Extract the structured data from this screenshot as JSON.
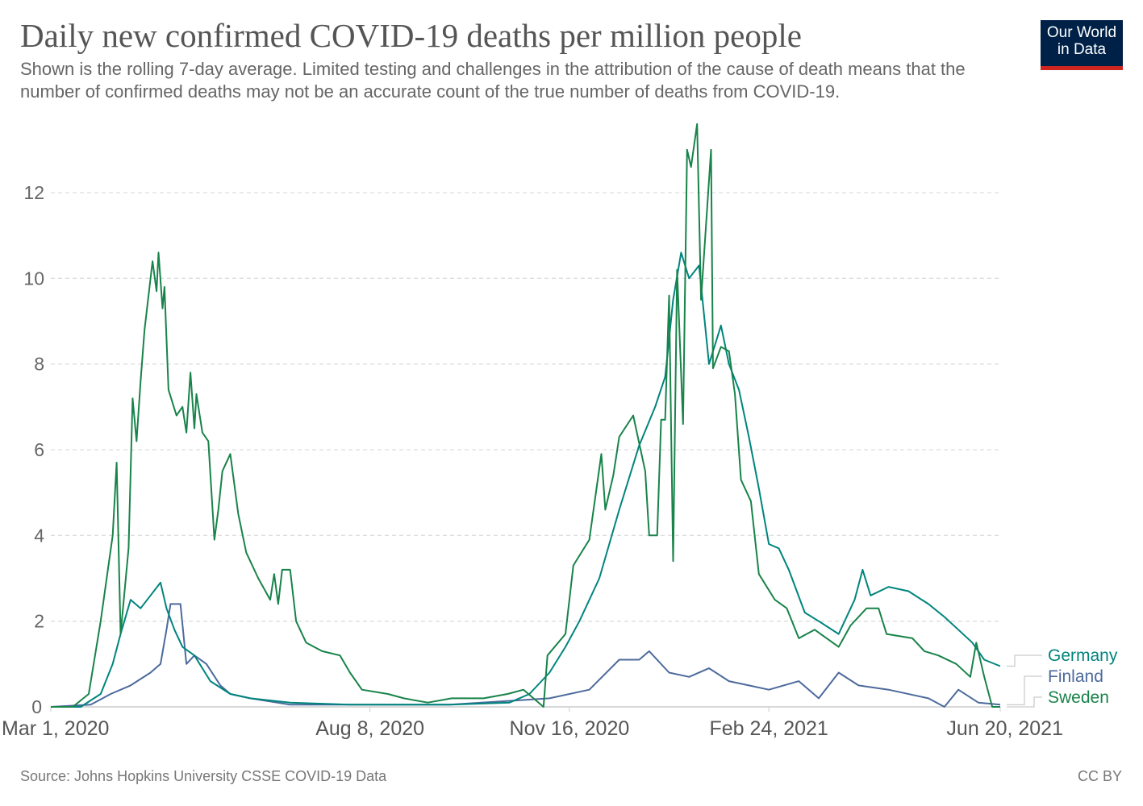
{
  "header": {
    "title": "Daily new confirmed COVID-19 deaths per million people",
    "subtitle": "Shown is the rolling 7-day average. Limited testing and challenges in the attribution of the cause of death means that the number of confirmed deaths may not be an accurate count of the true number of deaths from COVID-19.",
    "logo_line1": "Our World",
    "logo_line2": "in Data"
  },
  "footer": {
    "source": "Source: Johns Hopkins University CSSE COVID-19 Data",
    "license": "CC BY"
  },
  "chart_data": {
    "type": "line",
    "title": "Daily new confirmed COVID-19 deaths per million people",
    "xlim": [
      "2020-03-01",
      "2021-06-20"
    ],
    "ylim": [
      0,
      13.6
    ],
    "y_ticks": [
      0,
      2,
      4,
      6,
      8,
      10,
      12
    ],
    "x_ticks": [
      {
        "date": "2020-03-01",
        "label": "Mar 1, 2020"
      },
      {
        "date": "2020-08-08",
        "label": "Aug 8, 2020"
      },
      {
        "date": "2020-11-16",
        "label": "Nov 16, 2020"
      },
      {
        "date": "2021-02-24",
        "label": "Feb 24, 2021"
      },
      {
        "date": "2021-06-20",
        "label": "Jun 20, 2021"
      }
    ],
    "grid": "horizontal dashed",
    "legend": "right (end-of-line labels)",
    "series": [
      {
        "name": "Germany",
        "color": "#00847e",
        "points": [
          [
            "2020-03-01",
            0
          ],
          [
            "2020-03-16",
            0
          ],
          [
            "2020-03-26",
            0.3
          ],
          [
            "2020-04-01",
            1.0
          ],
          [
            "2020-04-05",
            1.7
          ],
          [
            "2020-04-10",
            2.5
          ],
          [
            "2020-04-15",
            2.3
          ],
          [
            "2020-04-20",
            2.6
          ],
          [
            "2020-04-25",
            2.9
          ],
          [
            "2020-04-28",
            2.3
          ],
          [
            "2020-05-02",
            1.8
          ],
          [
            "2020-05-06",
            1.4
          ],
          [
            "2020-05-12",
            1.2
          ],
          [
            "2020-05-20",
            0.6
          ],
          [
            "2020-05-30",
            0.3
          ],
          [
            "2020-06-09",
            0.2
          ],
          [
            "2020-06-29",
            0.1
          ],
          [
            "2020-07-29",
            0.05
          ],
          [
            "2020-09-17",
            0.05
          ],
          [
            "2020-10-17",
            0.1
          ],
          [
            "2020-10-27",
            0.3
          ],
          [
            "2020-11-06",
            0.8
          ],
          [
            "2020-11-14",
            1.4
          ],
          [
            "2020-11-21",
            2.0
          ],
          [
            "2020-12-01",
            3.0
          ],
          [
            "2020-12-11",
            4.6
          ],
          [
            "2020-12-21",
            6.1
          ],
          [
            "2020-12-29",
            7.0
          ],
          [
            "2021-01-03",
            7.7
          ],
          [
            "2021-01-07",
            9.5
          ],
          [
            "2021-01-11",
            10.6
          ],
          [
            "2021-01-15",
            10.0
          ],
          [
            "2021-01-20",
            10.3
          ],
          [
            "2021-01-25",
            8.0
          ],
          [
            "2021-01-31",
            8.9
          ],
          [
            "2021-02-04",
            8.0
          ],
          [
            "2021-02-09",
            7.4
          ],
          [
            "2021-02-14",
            6.3
          ],
          [
            "2021-02-19",
            5.1
          ],
          [
            "2021-02-24",
            3.8
          ],
          [
            "2021-03-01",
            3.7
          ],
          [
            "2021-03-06",
            3.2
          ],
          [
            "2021-03-14",
            2.2
          ],
          [
            "2021-03-21",
            2.0
          ],
          [
            "2021-03-31",
            1.7
          ],
          [
            "2021-04-08",
            2.5
          ],
          [
            "2021-04-12",
            3.2
          ],
          [
            "2021-04-16",
            2.6
          ],
          [
            "2021-04-25",
            2.8
          ],
          [
            "2021-05-05",
            2.7
          ],
          [
            "2021-05-15",
            2.4
          ],
          [
            "2021-05-23",
            2.1
          ],
          [
            "2021-05-30",
            1.8
          ],
          [
            "2021-06-06",
            1.5
          ],
          [
            "2021-06-12",
            1.1
          ],
          [
            "2021-06-20",
            0.95
          ]
        ]
      },
      {
        "name": "Finland",
        "color": "#4c6a9c",
        "points": [
          [
            "2020-03-01",
            0
          ],
          [
            "2020-03-21",
            0.05
          ],
          [
            "2020-03-31",
            0.3
          ],
          [
            "2020-04-10",
            0.5
          ],
          [
            "2020-04-20",
            0.8
          ],
          [
            "2020-04-25",
            1.0
          ],
          [
            "2020-04-28",
            1.8
          ],
          [
            "2020-04-30",
            2.4
          ],
          [
            "2020-05-05",
            2.4
          ],
          [
            "2020-05-08",
            1.0
          ],
          [
            "2020-05-12",
            1.2
          ],
          [
            "2020-05-18",
            1.0
          ],
          [
            "2020-05-25",
            0.5
          ],
          [
            "2020-05-30",
            0.3
          ],
          [
            "2020-06-09",
            0.2
          ],
          [
            "2020-06-29",
            0.05
          ],
          [
            "2020-09-17",
            0.05
          ],
          [
            "2020-11-06",
            0.2
          ],
          [
            "2020-11-26",
            0.4
          ],
          [
            "2020-12-11",
            1.1
          ],
          [
            "2020-12-21",
            1.1
          ],
          [
            "2020-12-26",
            1.3
          ],
          [
            "2021-01-05",
            0.8
          ],
          [
            "2021-01-15",
            0.7
          ],
          [
            "2021-01-25",
            0.9
          ],
          [
            "2021-02-04",
            0.6
          ],
          [
            "2021-02-14",
            0.5
          ],
          [
            "2021-02-24",
            0.4
          ],
          [
            "2021-03-11",
            0.6
          ],
          [
            "2021-03-21",
            0.2
          ],
          [
            "2021-03-31",
            0.8
          ],
          [
            "2021-04-10",
            0.5
          ],
          [
            "2021-04-25",
            0.4
          ],
          [
            "2021-05-15",
            0.2
          ],
          [
            "2021-05-23",
            0.0
          ],
          [
            "2021-05-30",
            0.4
          ],
          [
            "2021-06-09",
            0.1
          ],
          [
            "2021-06-20",
            0.05
          ]
        ]
      },
      {
        "name": "Sweden",
        "color": "#18834a",
        "points": [
          [
            "2020-03-01",
            0
          ],
          [
            "2020-03-12",
            0
          ],
          [
            "2020-03-20",
            0.3
          ],
          [
            "2020-03-26",
            2
          ],
          [
            "2020-04-01",
            4
          ],
          [
            "2020-04-03",
            5.7
          ],
          [
            "2020-04-05",
            1.7
          ],
          [
            "2020-04-09",
            3.7
          ],
          [
            "2020-04-11",
            7.2
          ],
          [
            "2020-04-13",
            6.2
          ],
          [
            "2020-04-15",
            7.6
          ],
          [
            "2020-04-17",
            8.8
          ],
          [
            "2020-04-21",
            10.4
          ],
          [
            "2020-04-23",
            9.7
          ],
          [
            "2020-04-24",
            10.6
          ],
          [
            "2020-04-26",
            9.3
          ],
          [
            "2020-04-27",
            9.8
          ],
          [
            "2020-04-29",
            7.4
          ],
          [
            "2020-05-03",
            6.8
          ],
          [
            "2020-05-06",
            7.0
          ],
          [
            "2020-05-08",
            6.4
          ],
          [
            "2020-05-10",
            7.8
          ],
          [
            "2020-05-12",
            6.5
          ],
          [
            "2020-05-13",
            7.3
          ],
          [
            "2020-05-16",
            6.4
          ],
          [
            "2020-05-19",
            6.2
          ],
          [
            "2020-05-22",
            3.9
          ],
          [
            "2020-05-24",
            4.6
          ],
          [
            "2020-05-26",
            5.5
          ],
          [
            "2020-05-30",
            5.9
          ],
          [
            "2020-06-03",
            4.5
          ],
          [
            "2020-06-07",
            3.6
          ],
          [
            "2020-06-13",
            3.0
          ],
          [
            "2020-06-19",
            2.5
          ],
          [
            "2020-06-21",
            3.1
          ],
          [
            "2020-06-23",
            2.4
          ],
          [
            "2020-06-25",
            3.2
          ],
          [
            "2020-06-29",
            3.2
          ],
          [
            "2020-07-02",
            2.0
          ],
          [
            "2020-07-07",
            1.5
          ],
          [
            "2020-07-15",
            1.3
          ],
          [
            "2020-07-24",
            1.2
          ],
          [
            "2020-07-29",
            0.8
          ],
          [
            "2020-08-04",
            0.4
          ],
          [
            "2020-08-17",
            0.3
          ],
          [
            "2020-08-25",
            0.2
          ],
          [
            "2020-09-06",
            0.1
          ],
          [
            "2020-09-18",
            0.2
          ],
          [
            "2020-10-04",
            0.2
          ],
          [
            "2020-10-16",
            0.3
          ],
          [
            "2020-10-24",
            0.4
          ],
          [
            "2020-11-03",
            0.0
          ],
          [
            "2020-11-05",
            1.2
          ],
          [
            "2020-11-14",
            1.7
          ],
          [
            "2020-11-18",
            3.3
          ],
          [
            "2020-11-26",
            3.9
          ],
          [
            "2020-12-02",
            5.9
          ],
          [
            "2020-12-04",
            4.6
          ],
          [
            "2020-12-08",
            5.4
          ],
          [
            "2020-12-11",
            6.3
          ],
          [
            "2020-12-18",
            6.8
          ],
          [
            "2020-12-24",
            5.5
          ],
          [
            "2020-12-26",
            4.0
          ],
          [
            "2020-12-30",
            4.0
          ],
          [
            "2021-01-01",
            6.7
          ],
          [
            "2021-01-03",
            6.7
          ],
          [
            "2021-01-05",
            9.6
          ],
          [
            "2021-01-07",
            3.4
          ],
          [
            "2021-01-09",
            10.2
          ],
          [
            "2021-01-12",
            6.6
          ],
          [
            "2021-01-14",
            13.0
          ],
          [
            "2021-01-16",
            12.6
          ],
          [
            "2021-01-19",
            13.6
          ],
          [
            "2021-01-21",
            9.5
          ],
          [
            "2021-01-26",
            13.0
          ],
          [
            "2021-01-27",
            7.9
          ],
          [
            "2021-01-31",
            8.4
          ],
          [
            "2021-02-04",
            8.3
          ],
          [
            "2021-02-07",
            7.3
          ],
          [
            "2021-02-10",
            5.3
          ],
          [
            "2021-02-15",
            4.8
          ],
          [
            "2021-02-19",
            3.1
          ],
          [
            "2021-02-27",
            2.5
          ],
          [
            "2021-03-05",
            2.3
          ],
          [
            "2021-03-11",
            1.6
          ],
          [
            "2021-03-19",
            1.8
          ],
          [
            "2021-03-31",
            1.4
          ],
          [
            "2021-04-06",
            1.9
          ],
          [
            "2021-04-14",
            2.3
          ],
          [
            "2021-04-20",
            2.3
          ],
          [
            "2021-04-24",
            1.7
          ],
          [
            "2021-05-07",
            1.6
          ],
          [
            "2021-05-13",
            1.3
          ],
          [
            "2021-05-20",
            1.2
          ],
          [
            "2021-05-29",
            1.0
          ],
          [
            "2021-06-05",
            0.7
          ],
          [
            "2021-06-08",
            1.5
          ],
          [
            "2021-06-12",
            0.7
          ],
          [
            "2021-06-16",
            0.0
          ],
          [
            "2021-06-20",
            0.0
          ]
        ]
      }
    ]
  }
}
